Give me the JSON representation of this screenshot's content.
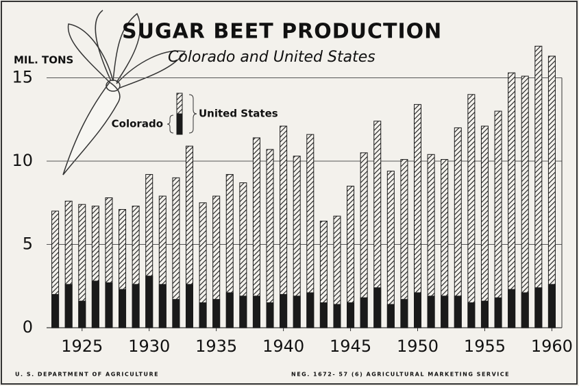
{
  "chart_data": {
    "type": "bar",
    "title": "SUGAR BEET PRODUCTION",
    "subtitle": "Colorado and United States",
    "y_label": "MIL. TONS",
    "footer_left": "U. S. DEPARTMENT OF AGRICULTURE",
    "footer_right": "NEG. 1672- 57 (6) AGRICULTURAL MARKETING SERVICE",
    "x": [
      1923,
      1924,
      1925,
      1926,
      1927,
      1928,
      1929,
      1930,
      1931,
      1932,
      1933,
      1934,
      1935,
      1936,
      1937,
      1938,
      1939,
      1940,
      1941,
      1942,
      1943,
      1944,
      1945,
      1946,
      1947,
      1948,
      1949,
      1950,
      1951,
      1952,
      1953,
      1954,
      1955,
      1956,
      1957,
      1958,
      1959,
      1960
    ],
    "series": [
      {
        "name": "United States",
        "color": "#1a1a1a",
        "hatch": true,
        "values": [
          7.0,
          7.6,
          7.4,
          7.3,
          7.8,
          7.1,
          7.3,
          9.2,
          7.9,
          9.0,
          10.9,
          7.5,
          7.9,
          9.2,
          8.7,
          11.4,
          10.7,
          12.1,
          10.3,
          11.6,
          6.4,
          6.7,
          8.5,
          10.5,
          12.4,
          9.4,
          10.1,
          13.4,
          10.4,
          10.1,
          12.0,
          14.0,
          12.1,
          13.0,
          15.3,
          15.1,
          16.9,
          16.3
        ]
      },
      {
        "name": "Colorado",
        "color": "#1a1a1a",
        "hatch": false,
        "values": [
          2.0,
          2.6,
          1.6,
          2.8,
          2.7,
          2.3,
          2.6,
          3.1,
          2.6,
          1.7,
          2.6,
          1.5,
          1.7,
          2.1,
          1.9,
          1.9,
          1.5,
          2.0,
          1.9,
          2.1,
          1.5,
          1.4,
          1.5,
          1.8,
          2.4,
          1.4,
          1.7,
          2.1,
          1.9,
          1.9,
          1.9,
          1.5,
          1.6,
          1.8,
          2.3,
          2.1,
          2.4,
          2.6
        ]
      }
    ],
    "xlim": [
      1922,
      1961
    ],
    "xticks": [
      1925,
      1930,
      1935,
      1940,
      1945,
      1950,
      1955,
      1960
    ],
    "ylim": [
      0,
      18
    ],
    "yticks": [
      0,
      5,
      10,
      15
    ],
    "grid": true
  }
}
